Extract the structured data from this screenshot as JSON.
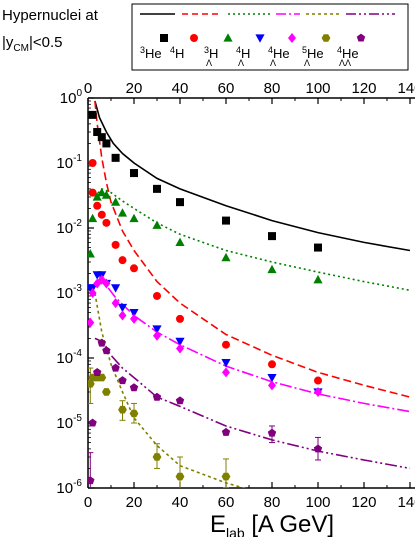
{
  "chart_data": {
    "type": "scatter",
    "annotation_lines": [
      "Hypernuclei at",
      "|y",
      "CM",
      "|<0.5"
    ],
    "xlabel_main": "E",
    "xlabel_sub": "lab",
    "xlabel_rest": " [A GeV]",
    "xlim": [
      0,
      140
    ],
    "ylim": [
      1e-06,
      1
    ],
    "ylog": true,
    "x_ticks": [
      0,
      20,
      40,
      60,
      80,
      100,
      120,
      140
    ],
    "y_ticks": [
      {
        "base": "10",
        "exp": "0",
        "value": 1
      },
      {
        "base": "10",
        "exp": "-1",
        "value": 0.1
      },
      {
        "base": "10",
        "exp": "-2",
        "value": 0.01
      },
      {
        "base": "10",
        "exp": "-3",
        "value": 0.001
      },
      {
        "base": "10",
        "exp": "-4",
        "value": 0.0001
      },
      {
        "base": "10",
        "exp": "-5",
        "value": 1e-05
      },
      {
        "base": "10",
        "exp": "-6",
        "value": 1e-06
      }
    ],
    "legend": {
      "placement": "top-right",
      "entries": [
        {
          "pre": "",
          "sup": "3",
          "sub": "",
          "main": "He",
          "marker": "square",
          "color": "#000000"
        },
        {
          "pre": "",
          "sup": "4",
          "sub": "",
          "main": "H",
          "marker": "circle",
          "color": "#ff0000"
        },
        {
          "pre": "",
          "sup": "3",
          "sub": "Λ",
          "main": "H",
          "marker": "triangle-up",
          "color": "#008000"
        },
        {
          "pre": "",
          "sup": "4",
          "sub": "Λ",
          "main": "H",
          "marker": "triangle-down",
          "color": "#0000ff"
        },
        {
          "pre": "",
          "sup": "4",
          "sub": "Λ",
          "main": "He",
          "marker": "diamond",
          "color": "#ff00ff"
        },
        {
          "pre": "",
          "sup": "5",
          "sub": "Λ",
          "main": "He",
          "marker": "hexagon",
          "color": "#808000"
        },
        {
          "pre": "",
          "sup": "4",
          "sub": "ΛΛ",
          "main": "He",
          "marker": "pentagon",
          "color": "#800080"
        }
      ]
    },
    "series": [
      {
        "name": "3He",
        "color": "#000000",
        "marker": "square",
        "dash": "",
        "points": [
          [
            2,
            0.55
          ],
          [
            4,
            0.3
          ],
          [
            6,
            0.25
          ],
          [
            8,
            0.2
          ],
          [
            12,
            0.12
          ],
          [
            20,
            0.07
          ],
          [
            30,
            0.04
          ],
          [
            40,
            0.025
          ],
          [
            60,
            0.013
          ],
          [
            80,
            0.0075
          ],
          [
            100,
            0.005
          ]
        ],
        "curve": [
          [
            3,
            0.9
          ],
          [
            5,
            0.5
          ],
          [
            8,
            0.3
          ],
          [
            11,
            0.2
          ],
          [
            15,
            0.14
          ],
          [
            20,
            0.1
          ],
          [
            30,
            0.058
          ],
          [
            40,
            0.04
          ],
          [
            60,
            0.022
          ],
          [
            80,
            0.013
          ],
          [
            100,
            0.0085
          ],
          [
            120,
            0.006
          ],
          [
            140,
            0.0045
          ]
        ]
      },
      {
        "name": "4H",
        "color": "#ff0000",
        "marker": "circle",
        "dash": "8,4",
        "points": [
          [
            2,
            0.1
          ],
          [
            2,
            0.035
          ],
          [
            4,
            0.022
          ],
          [
            6,
            0.016
          ],
          [
            8,
            0.012
          ],
          [
            12,
            0.0055
          ],
          [
            15,
            0.0032
          ],
          [
            20,
            0.0024
          ],
          [
            30,
            0.0009
          ],
          [
            40,
            0.0004
          ],
          [
            60,
            0.00016
          ],
          [
            80,
            8e-05
          ],
          [
            100,
            4.5e-05
          ]
        ],
        "curve": [
          [
            3,
            0.9
          ],
          [
            4,
            0.4
          ],
          [
            6,
            0.12
          ],
          [
            8,
            0.05
          ],
          [
            10,
            0.025
          ],
          [
            15,
            0.009
          ],
          [
            20,
            0.0045
          ],
          [
            30,
            0.0015
          ],
          [
            40,
            0.0007
          ],
          [
            60,
            0.00023
          ],
          [
            80,
            0.00011
          ],
          [
            100,
            6e-05
          ],
          [
            120,
            3.8e-05
          ],
          [
            140,
            2.5e-05
          ]
        ]
      },
      {
        "name": "3LH",
        "color": "#008000",
        "marker": "triangle-up",
        "dash": "2,3",
        "points": [
          [
            1,
            0.004
          ],
          [
            2,
            0.014
          ],
          [
            4,
            0.03
          ],
          [
            6,
            0.035
          ],
          [
            8,
            0.032
          ],
          [
            12,
            0.025
          ],
          [
            15,
            0.017
          ],
          [
            20,
            0.014
          ],
          [
            30,
            0.011
          ],
          [
            40,
            0.006
          ],
          [
            60,
            0.0035
          ],
          [
            80,
            0.0023
          ],
          [
            100,
            0.0016
          ]
        ],
        "curve": [
          [
            3,
            0.03
          ],
          [
            6,
            0.04
          ],
          [
            10,
            0.035
          ],
          [
            15,
            0.026
          ],
          [
            20,
            0.02
          ],
          [
            30,
            0.012
          ],
          [
            40,
            0.008
          ],
          [
            60,
            0.0045
          ],
          [
            80,
            0.003
          ],
          [
            100,
            0.0021
          ],
          [
            120,
            0.0015
          ],
          [
            140,
            0.0011
          ]
        ]
      },
      {
        "name": "4LH",
        "color": "#0000ff",
        "marker": "triangle-down",
        "dash": "",
        "points": [
          [
            1,
            0.0012
          ],
          [
            2,
            0.0012
          ],
          [
            4,
            0.0019
          ],
          [
            6,
            0.0019
          ],
          [
            8,
            0.0014
          ],
          [
            12,
            0.0012
          ],
          [
            15,
            0.0006
          ],
          [
            20,
            0.0005
          ],
          [
            30,
            0.00028
          ],
          [
            40,
            0.00018
          ],
          [
            60,
            8.5e-05
          ],
          [
            80,
            5e-05
          ],
          [
            100,
            3e-05
          ]
        ],
        "curve": []
      },
      {
        "name": "4LHe",
        "color": "#ff00ff",
        "marker": "diamond",
        "dash": "12,3,2,3",
        "points": [
          [
            1,
            0.00035
          ],
          [
            2,
            0.001
          ],
          [
            4,
            0.0014
          ],
          [
            6,
            0.0016
          ],
          [
            8,
            0.0014
          ],
          [
            12,
            0.0007
          ],
          [
            15,
            0.00045
          ],
          [
            20,
            0.0004
          ],
          [
            30,
            0.00022
          ],
          [
            40,
            0.00014
          ],
          [
            60,
            6e-05
          ],
          [
            80,
            3.8e-05
          ],
          [
            100,
            3e-05
          ]
        ],
        "curve": [
          [
            3,
            0.002
          ],
          [
            5,
            0.0018
          ],
          [
            8,
            0.0013
          ],
          [
            12,
            0.00085
          ],
          [
            20,
            0.00045
          ],
          [
            30,
            0.00025
          ],
          [
            40,
            0.00016
          ],
          [
            60,
            7.5e-05
          ],
          [
            80,
            4.3e-05
          ],
          [
            100,
            2.8e-05
          ],
          [
            120,
            2e-05
          ],
          [
            140,
            1.5e-05
          ]
        ]
      },
      {
        "name": "5LHe",
        "color": "#808000",
        "marker": "hexagon",
        "dash": "3,3",
        "points": [
          [
            1,
            4e-05
          ],
          [
            2,
            5e-05
          ],
          [
            4,
            5e-05
          ],
          [
            6,
            5e-05
          ],
          [
            8,
            3e-05
          ],
          [
            15,
            1.6e-05
          ],
          [
            20,
            1.4e-05
          ],
          [
            30,
            3e-06
          ],
          [
            40,
            1.5e-06
          ],
          [
            60,
            1.5e-06
          ]
        ],
        "curve": [
          [
            3,
            0.001
          ],
          [
            6,
            0.00025
          ],
          [
            10,
            8e-05
          ],
          [
            15,
            3e-05
          ],
          [
            20,
            1.2e-05
          ],
          [
            30,
            4.5e-06
          ],
          [
            40,
            2.2e-06
          ],
          [
            60,
            1.2e-06
          ],
          [
            80,
            7.5e-07
          ],
          [
            90,
            6e-07
          ]
        ],
        "errors": [
          [
            15,
            1.1e-05,
            2.2e-05
          ],
          [
            20,
            1e-05,
            2e-05
          ],
          [
            30,
            2e-06,
            4.8e-06
          ],
          [
            40,
            9e-07,
            3e-06
          ],
          [
            60,
            1e-06,
            2.8e-06
          ],
          [
            1,
            2e-05,
            7e-05
          ]
        ]
      },
      {
        "name": "4LLHe",
        "color": "#800080",
        "marker": "pentagon",
        "dash": "12,3,2,3,2,3",
        "points": [
          [
            1,
            1.3e-06
          ],
          [
            2,
            1e-05
          ],
          [
            4,
            6e-05
          ],
          [
            6,
            0.00017
          ],
          [
            8,
            0.00013
          ],
          [
            12,
            7e-05
          ],
          [
            15,
            4.5e-05
          ],
          [
            20,
            3.5e-05
          ],
          [
            30,
            2.5e-05
          ],
          [
            40,
            2.2e-05
          ],
          [
            60,
            7.2e-06
          ],
          [
            80,
            7e-06
          ],
          [
            100,
            4e-06
          ]
        ],
        "curve": [
          [
            3,
            0.0002
          ],
          [
            6,
            0.00018
          ],
          [
            10,
            0.00011
          ],
          [
            15,
            7e-05
          ],
          [
            20,
            5e-05
          ],
          [
            30,
            2.5e-05
          ],
          [
            40,
            1.8e-05
          ],
          [
            60,
            9e-06
          ],
          [
            80,
            5.5e-06
          ],
          [
            100,
            3.7e-06
          ],
          [
            120,
            2.7e-06
          ],
          [
            140,
            2e-06
          ]
        ],
        "errors": [
          [
            1,
            5e-07,
            3.5e-06
          ],
          [
            80,
            5e-06,
            9e-06
          ],
          [
            100,
            2.7e-06,
            6e-06
          ]
        ]
      }
    ]
  }
}
